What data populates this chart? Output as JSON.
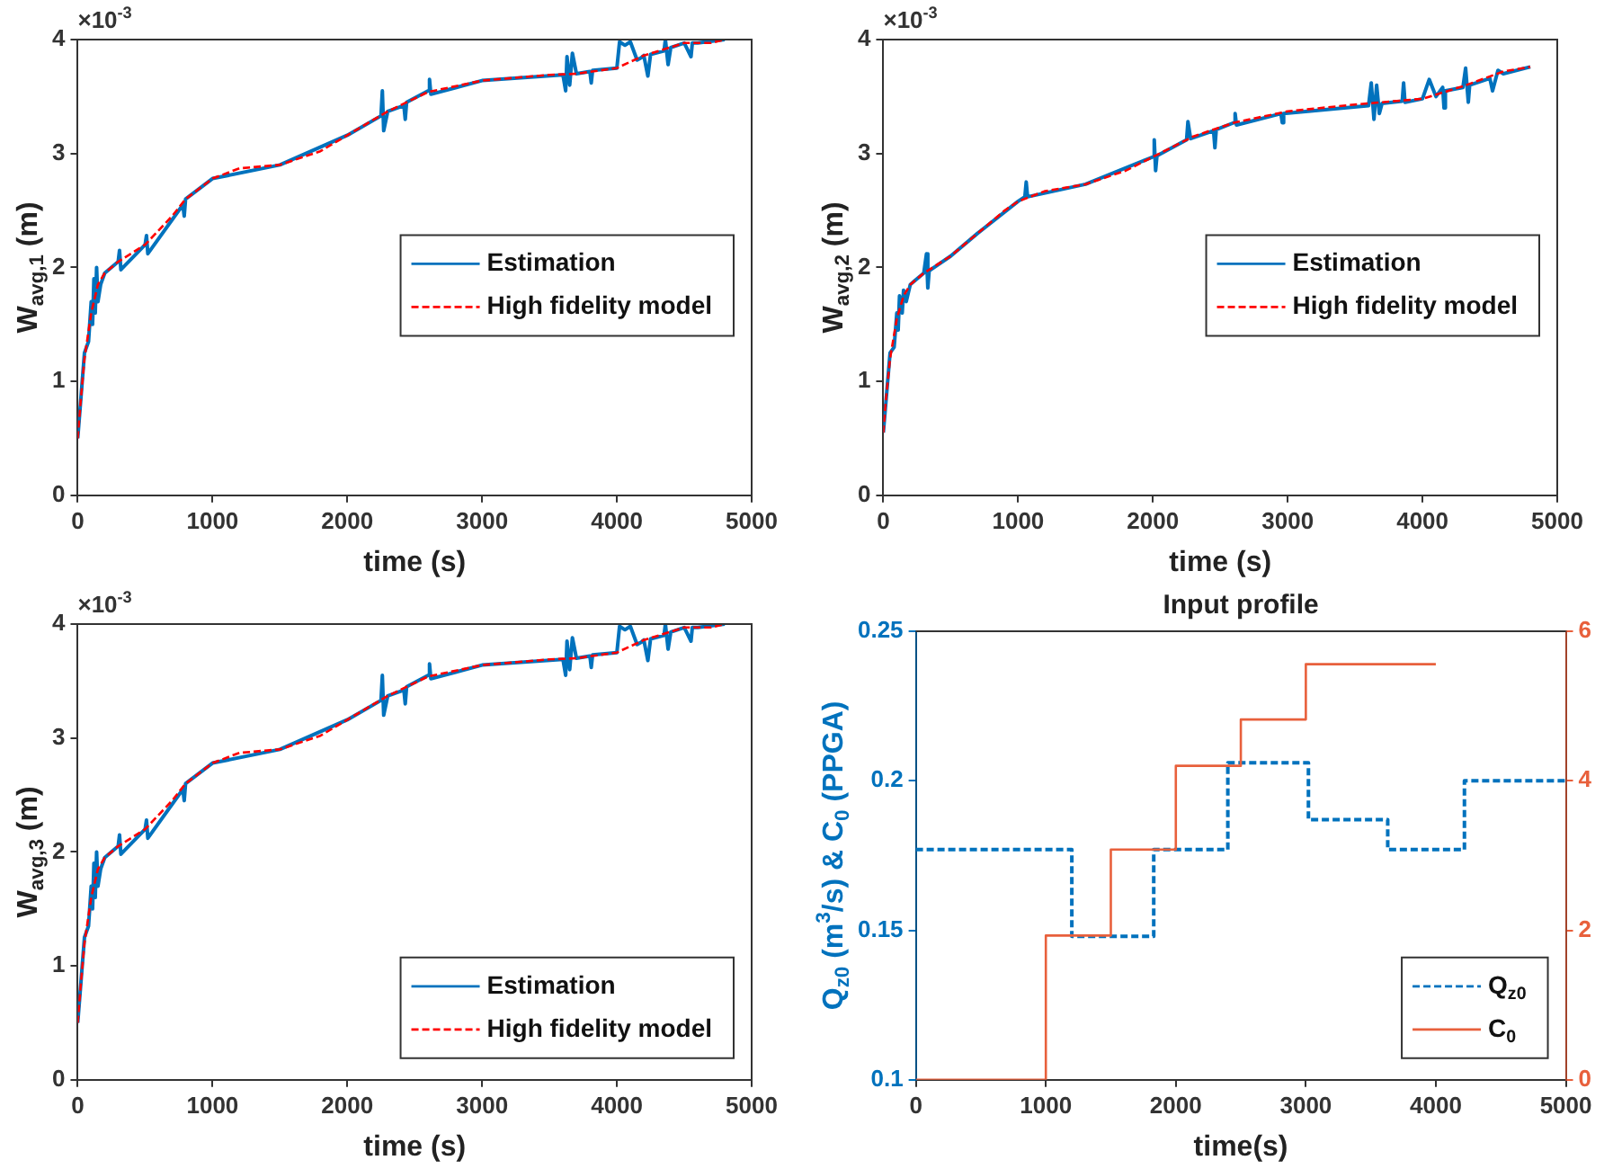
{
  "chart_data": [
    {
      "type": "line",
      "xlabel": "time (s)",
      "ylabel": "W$_{avg,1}$ (m)",
      "xlim": [
        0,
        5000
      ],
      "xticks": [
        0,
        1000,
        2000,
        3000,
        4000,
        5000
      ],
      "ylim": [
        0,
        4
      ],
      "yticks": [
        0,
        1,
        2,
        3,
        4
      ],
      "legend": "right",
      "annotations": [
        "×10$^{-3}$"
      ],
      "series": [
        {
          "name": "Estimation",
          "color": "#0072bd",
          "line_style": "solid",
          "x": [
            0,
            50,
            80,
            100,
            110,
            120,
            130,
            140,
            150,
            170,
            200,
            300,
            310,
            320,
            500,
            510,
            520,
            780,
            790,
            800,
            1000,
            1500,
            2000,
            2250,
            2260,
            2270,
            2300,
            2420,
            2430,
            2440,
            2600,
            2610,
            2620,
            3000,
            3600,
            3620,
            3630,
            3650,
            3670,
            3700,
            3800,
            3810,
            3820,
            4000,
            4020,
            4060,
            4100,
            4150,
            4180,
            4200,
            4230,
            4250,
            4350,
            4360,
            4380,
            4400,
            4500,
            4550,
            4560,
            4600,
            4800
          ],
          "values": [
            0.5,
            1.25,
            1.35,
            1.7,
            1.5,
            1.9,
            1.6,
            2.0,
            1.7,
            1.85,
            1.95,
            2.05,
            2.15,
            1.98,
            2.2,
            2.28,
            2.12,
            2.55,
            2.45,
            2.6,
            2.78,
            2.9,
            3.16,
            3.33,
            3.55,
            3.2,
            3.37,
            3.42,
            3.3,
            3.45,
            3.55,
            3.65,
            3.52,
            3.64,
            3.69,
            3.55,
            3.85,
            3.6,
            3.88,
            3.7,
            3.72,
            3.62,
            3.73,
            3.75,
            3.98,
            3.95,
            3.98,
            3.82,
            3.84,
            3.86,
            3.68,
            3.87,
            3.9,
            4.0,
            3.78,
            3.93,
            3.97,
            3.85,
            3.97,
            3.97,
            4.0
          ]
        },
        {
          "name": "High fidelity model",
          "color": "#ff0000",
          "line_style": "dashed",
          "x": [
            0,
            20,
            50,
            100,
            150,
            200,
            300,
            500,
            700,
            800,
            1000,
            1200,
            1500,
            1800,
            2000,
            2300,
            2600,
            3000,
            3500,
            3700,
            4000,
            4200,
            4500,
            4700,
            4800
          ],
          "values": [
            0.5,
            0.8,
            1.2,
            1.6,
            1.85,
            1.95,
            2.05,
            2.2,
            2.45,
            2.6,
            2.78,
            2.87,
            2.9,
            3.02,
            3.16,
            3.37,
            3.54,
            3.64,
            3.69,
            3.7,
            3.75,
            3.86,
            3.97,
            3.97,
            4.0
          ]
        }
      ]
    },
    {
      "type": "line",
      "xlabel": "time (s)",
      "ylabel": "W$_{avg,2}$ (m)",
      "xlim": [
        0,
        5000
      ],
      "xticks": [
        0,
        1000,
        2000,
        3000,
        4000,
        5000
      ],
      "ylim": [
        0,
        4
      ],
      "yticks": [
        0,
        1,
        2,
        3,
        4
      ],
      "legend": "right",
      "annotations": [
        "×10$^{-3}$"
      ],
      "series": [
        {
          "name": "Estimation",
          "color": "#0072bd",
          "line_style": "solid",
          "x": [
            0,
            50,
            80,
            100,
            110,
            120,
            140,
            150,
            170,
            200,
            300,
            320,
            330,
            340,
            500,
            700,
            1000,
            1050,
            1060,
            1070,
            1500,
            2000,
            2010,
            2020,
            2030,
            2250,
            2260,
            2280,
            2450,
            2460,
            2470,
            2600,
            2610,
            2620,
            2950,
            2960,
            2970,
            3600,
            3620,
            3640,
            3660,
            3680,
            3700,
            3850,
            3860,
            3870,
            4000,
            4050,
            4100,
            4150,
            4160,
            4170,
            4300,
            4320,
            4340,
            4350,
            4500,
            4520,
            4560,
            4600,
            4800
          ],
          "values": [
            0.55,
            1.25,
            1.3,
            1.6,
            1.45,
            1.75,
            1.6,
            1.8,
            1.7,
            1.85,
            1.95,
            2.12,
            1.82,
            1.97,
            2.1,
            2.3,
            2.58,
            2.62,
            2.75,
            2.62,
            2.73,
            2.97,
            3.12,
            2.85,
            2.98,
            3.12,
            3.28,
            3.13,
            3.2,
            3.05,
            3.21,
            3.27,
            3.35,
            3.25,
            3.35,
            3.27,
            3.35,
            3.42,
            3.62,
            3.3,
            3.6,
            3.35,
            3.44,
            3.46,
            3.62,
            3.45,
            3.48,
            3.65,
            3.5,
            3.58,
            3.4,
            3.55,
            3.58,
            3.75,
            3.45,
            3.6,
            3.66,
            3.55,
            3.73,
            3.7,
            3.76
          ]
        },
        {
          "name": "High fidelity model",
          "color": "#ff0000",
          "line_style": "dashed",
          "x": [
            0,
            20,
            50,
            100,
            150,
            200,
            300,
            500,
            700,
            900,
            1000,
            1200,
            1500,
            1800,
            2000,
            2300,
            2600,
            3000,
            3500,
            3700,
            4000,
            4300,
            4600,
            4800
          ],
          "values": [
            0.55,
            0.85,
            1.2,
            1.55,
            1.75,
            1.85,
            1.95,
            2.1,
            2.3,
            2.5,
            2.58,
            2.67,
            2.73,
            2.85,
            2.97,
            3.15,
            3.27,
            3.37,
            3.43,
            3.45,
            3.48,
            3.59,
            3.72,
            3.76
          ]
        }
      ]
    },
    {
      "type": "line",
      "xlabel": "time (s)",
      "ylabel": "W$_{avg,3}$ (m)",
      "xlim": [
        0,
        5000
      ],
      "xticks": [
        0,
        1000,
        2000,
        3000,
        4000,
        5000
      ],
      "ylim": [
        0,
        4
      ],
      "yticks": [
        0,
        1,
        2,
        3,
        4
      ],
      "legend": "bottom right",
      "annotations": [
        "×10$^{-3}$"
      ],
      "series": [
        {
          "name": "Estimation",
          "color": "#0072bd",
          "line_style": "solid",
          "x": [
            0,
            50,
            80,
            100,
            110,
            120,
            130,
            140,
            150,
            170,
            200,
            300,
            310,
            320,
            500,
            510,
            520,
            780,
            790,
            800,
            1000,
            1500,
            2000,
            2250,
            2260,
            2270,
            2300,
            2420,
            2430,
            2440,
            2600,
            2610,
            2620,
            3000,
            3600,
            3620,
            3630,
            3650,
            3670,
            3700,
            3800,
            3810,
            3820,
            4000,
            4020,
            4060,
            4100,
            4150,
            4180,
            4200,
            4230,
            4250,
            4350,
            4360,
            4380,
            4400,
            4500,
            4550,
            4560,
            4600,
            4800
          ],
          "values": [
            0.5,
            1.25,
            1.35,
            1.7,
            1.5,
            1.9,
            1.6,
            2.0,
            1.7,
            1.85,
            1.95,
            2.05,
            2.15,
            1.98,
            2.2,
            2.28,
            2.12,
            2.55,
            2.45,
            2.6,
            2.78,
            2.9,
            3.16,
            3.33,
            3.55,
            3.2,
            3.37,
            3.42,
            3.3,
            3.45,
            3.55,
            3.65,
            3.52,
            3.64,
            3.69,
            3.55,
            3.85,
            3.6,
            3.88,
            3.7,
            3.72,
            3.62,
            3.73,
            3.75,
            3.98,
            3.95,
            3.98,
            3.82,
            3.84,
            3.86,
            3.68,
            3.87,
            3.9,
            4.0,
            3.78,
            3.93,
            3.97,
            3.85,
            3.97,
            3.97,
            4.0
          ]
        },
        {
          "name": "High fidelity model",
          "color": "#ff0000",
          "line_style": "dashed",
          "x": [
            0,
            20,
            50,
            100,
            150,
            200,
            300,
            500,
            700,
            800,
            1000,
            1200,
            1500,
            1800,
            2000,
            2300,
            2600,
            3000,
            3500,
            3700,
            4000,
            4200,
            4500,
            4700,
            4800
          ],
          "values": [
            0.5,
            0.8,
            1.2,
            1.6,
            1.85,
            1.95,
            2.05,
            2.2,
            2.45,
            2.6,
            2.78,
            2.87,
            2.9,
            3.02,
            3.16,
            3.37,
            3.54,
            3.64,
            3.69,
            3.7,
            3.75,
            3.86,
            3.97,
            3.97,
            4.0
          ]
        }
      ]
    },
    {
      "type": "step",
      "title": "Input profile",
      "xlabel": "time(s)",
      "ylabel": "Q$_{z0}$ (m$^{3}$/s) & C$_{0}$ (PPGA)",
      "xlim": [
        0,
        5000
      ],
      "xticks": [
        0,
        1000,
        2000,
        3000,
        4000,
        5000
      ],
      "ylim": [
        0.1,
        0.25
      ],
      "yticks": [
        0.1,
        0.15,
        0.2,
        0.25
      ],
      "y2lim": [
        0,
        6
      ],
      "y2ticks": [
        0,
        2,
        4,
        6
      ],
      "legend": "bottom right",
      "series": [
        {
          "name": "Q$_{z0}$",
          "color": "#0072bd",
          "line_style": "dashed",
          "x": [
            0,
            1200,
            1830,
            2400,
            3020,
            3630,
            4220,
            5000
          ],
          "values": [
            0.177,
            0.148,
            0.177,
            0.206,
            0.187,
            0.177,
            0.2,
            0.2
          ]
        },
        {
          "name": "C$_{0}$",
          "color": "#e8603c",
          "line_style": "solid",
          "axis": "y2",
          "x": [
            0,
            1000,
            1500,
            2000,
            2500,
            3000,
            4000
          ],
          "values": [
            0,
            1.93,
            3.08,
            4.2,
            4.82,
            5.56,
            5.56
          ]
        }
      ]
    }
  ]
}
